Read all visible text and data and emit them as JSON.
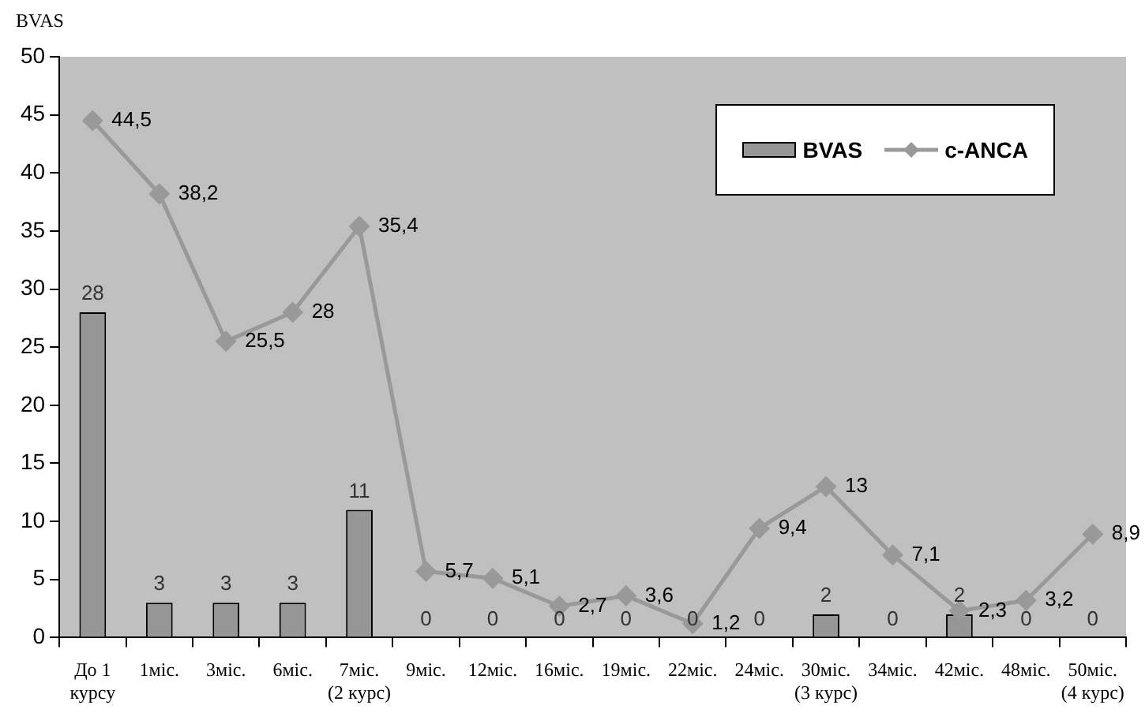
{
  "chart_data": {
    "type": "bar",
    "ylabel": "BVAS",
    "categories": [
      "До 1\nкурсу",
      "1міс.",
      "3міс.",
      "6міс.",
      "7міс.\n(2 курс)",
      "9міс.",
      "12міс.",
      "16міс.",
      "19міс.",
      "22міс.",
      "24міс.",
      "30міс.\n(3 курс)",
      "34міс.",
      "42міс.",
      "48міс.",
      "50міс.\n(4 курс)"
    ],
    "series": [
      {
        "name": "BVAS",
        "type": "bar",
        "color": "#969696",
        "values": [
          28,
          3,
          3,
          3,
          11,
          0,
          0,
          0,
          0,
          0,
          0,
          2,
          0,
          2,
          0,
          0
        ],
        "value_labels": [
          "28",
          "3",
          "3",
          "3",
          "11",
          "0",
          "0",
          "0",
          "0",
          "0",
          "0",
          "2",
          "0",
          "2",
          "0",
          "0"
        ]
      },
      {
        "name": "c-ANCA",
        "type": "line",
        "color": "#999999",
        "values": [
          44.5,
          38.2,
          25.5,
          28,
          35.4,
          5.7,
          5.1,
          2.7,
          3.6,
          1.2,
          9.4,
          13,
          7.1,
          2.3,
          3.2,
          8.9
        ],
        "value_labels": [
          "44,5",
          "38,2",
          "25,5",
          "28",
          "35,4",
          "5,7",
          "5,1",
          "2,7",
          "3,6",
          "1,2",
          "9,4",
          "13",
          "7,1",
          "2,3",
          "3,2",
          "8,9"
        ]
      }
    ],
    "ylim": [
      0,
      50
    ],
    "yticks": [
      0,
      5,
      10,
      15,
      20,
      25,
      30,
      35,
      40,
      45,
      50
    ],
    "grid": false,
    "legend": "top right",
    "marker": "diamond"
  }
}
